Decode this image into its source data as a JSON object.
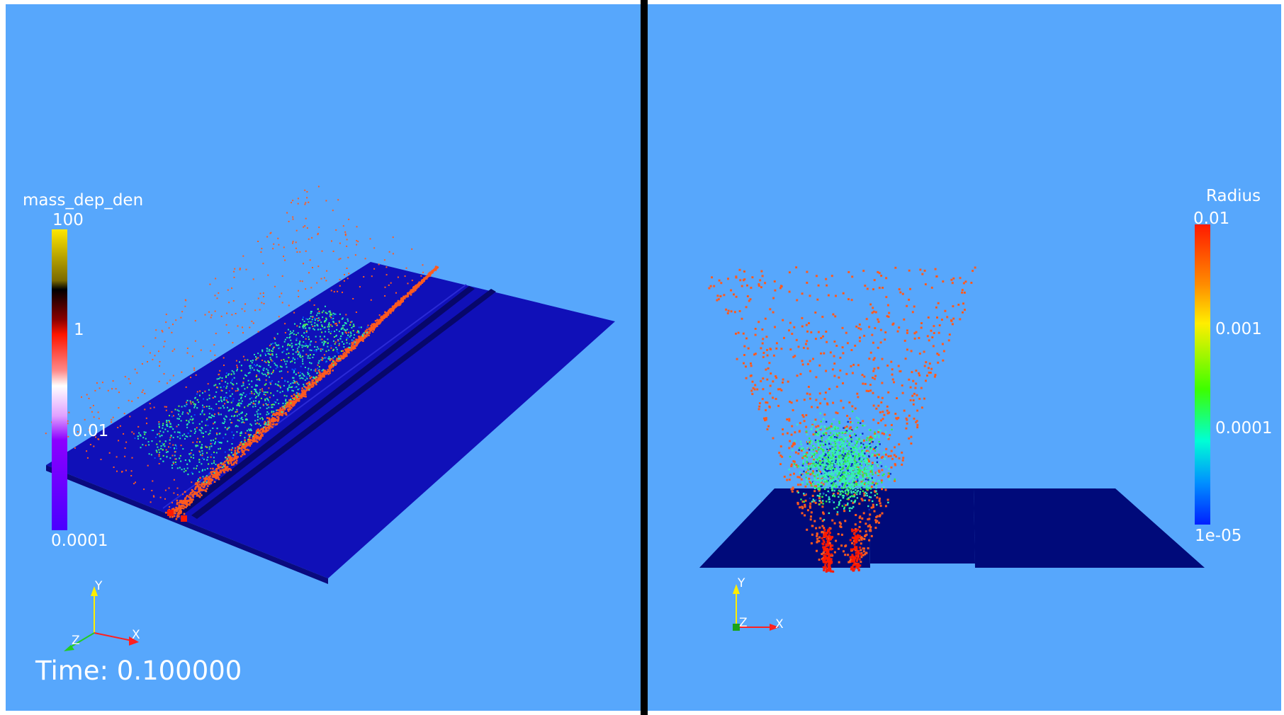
{
  "left_view": {
    "colorbar": {
      "title": "mass_dep_den",
      "ticks": [
        "100",
        "1",
        "0.01",
        "0.0001"
      ],
      "colors": [
        "#ffe600",
        "#000000",
        "#ff1500",
        "#ffffff",
        "#8c00ff",
        "#4a00ff"
      ]
    },
    "time_label": "Time: 0.100000",
    "axes": {
      "x": "X",
      "y": "Y",
      "z": "Z"
    },
    "colors": {
      "plate": "#1010b8",
      "particles_major": "#ff5a1e",
      "particles_minor": "#27e8b0"
    }
  },
  "right_view": {
    "colorbar": {
      "title": "Radius",
      "ticks": [
        "0.01",
        "0.001",
        "0.0001",
        "1e-05"
      ],
      "colors": [
        "#ff1a00",
        "#ffee00",
        "#3cff00",
        "#00ffd5",
        "#0060ff",
        "#0020ff"
      ]
    },
    "axes": {
      "x": "X",
      "y": "Y",
      "z": "Z"
    },
    "colors": {
      "plate": "#000a7a",
      "particles_major": "#ff5a1e",
      "particles_minor": "#36f0b8"
    }
  },
  "colors": {
    "background": "#57a7fc",
    "divider": "#000000"
  }
}
